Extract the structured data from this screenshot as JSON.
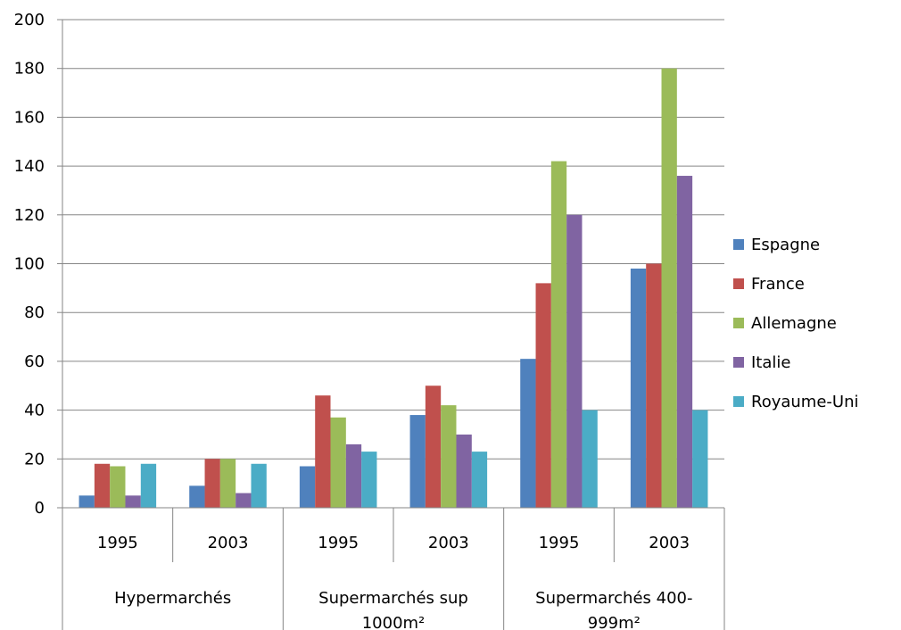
{
  "chart_data": {
    "type": "bar",
    "groups": [
      {
        "label_lines": [
          "Hypermarchés"
        ],
        "years": [
          "1995",
          "2003"
        ]
      },
      {
        "label_lines": [
          "Supermarchés sup",
          "1000m²"
        ],
        "years": [
          "1995",
          "2003"
        ]
      },
      {
        "label_lines": [
          "Supermarchés 400-",
          "999m²"
        ],
        "years": [
          "1995",
          "2003"
        ]
      }
    ],
    "series": [
      {
        "name": "Espagne",
        "color": "#4F81BD",
        "values": [
          5,
          9,
          17,
          38,
          61,
          98
        ]
      },
      {
        "name": "France",
        "color": "#C0504D",
        "values": [
          18,
          20,
          46,
          50,
          92,
          100
        ]
      },
      {
        "name": "Allemagne",
        "color": "#9BBB59",
        "values": [
          17,
          20,
          37,
          42,
          142,
          180
        ]
      },
      {
        "name": "Italie",
        "color": "#8064A2",
        "values": [
          5,
          6,
          26,
          30,
          120,
          136
        ]
      },
      {
        "name": "Royaume-Uni",
        "color": "#4BACC6",
        "values": [
          18,
          18,
          23,
          23,
          40,
          40
        ]
      }
    ],
    "y_ticks": [
      "0",
      "20",
      "40",
      "60",
      "80",
      "100",
      "120",
      "140",
      "160",
      "180",
      "200"
    ],
    "ylim": [
      0,
      200
    ],
    "grid": true,
    "legend_position": "right"
  }
}
